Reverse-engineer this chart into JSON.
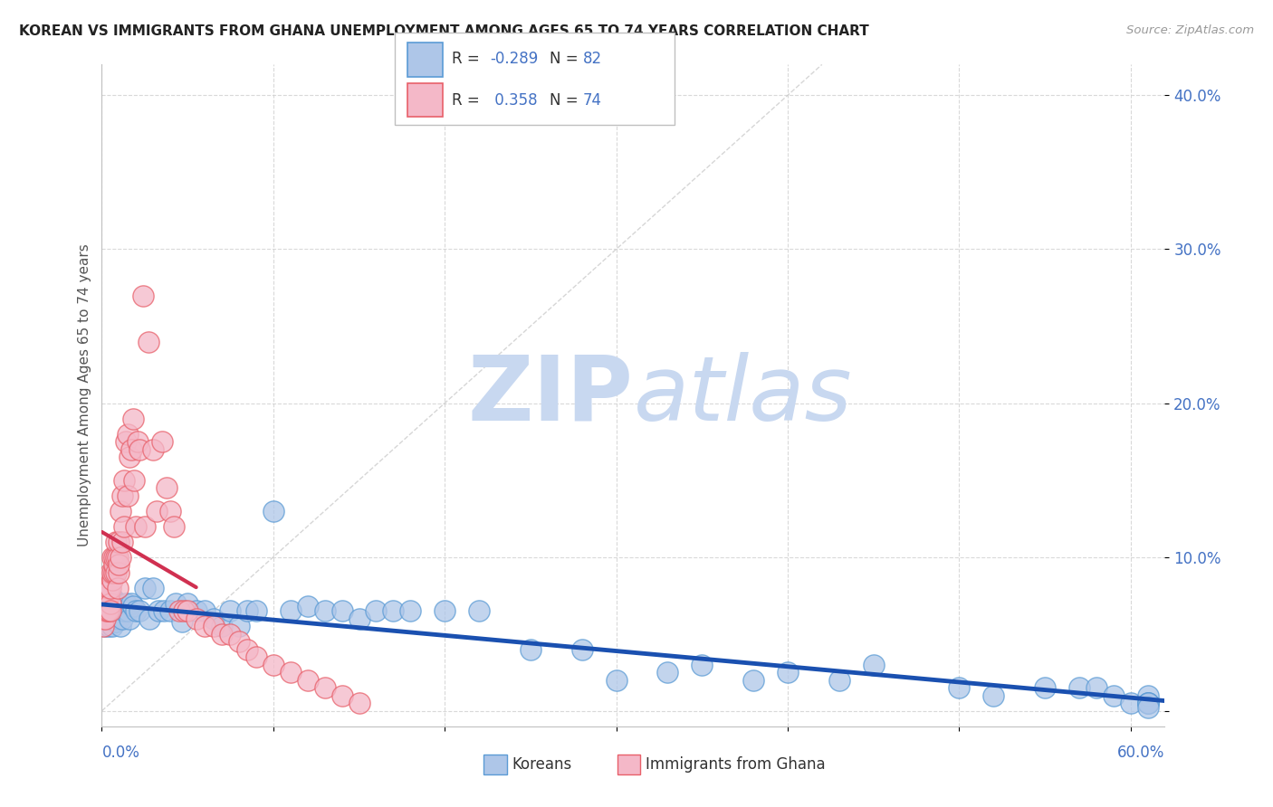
{
  "title": "KOREAN VS IMMIGRANTS FROM GHANA UNEMPLOYMENT AMONG AGES 65 TO 74 YEARS CORRELATION CHART",
  "source": "Source: ZipAtlas.com",
  "ylabel": "Unemployment Among Ages 65 to 74 years",
  "xlim": [
    0.0,
    0.62
  ],
  "ylim": [
    -0.01,
    0.42
  ],
  "ytick_vals": [
    0.0,
    0.1,
    0.2,
    0.3,
    0.4
  ],
  "ytick_labels": [
    "",
    "10.0%",
    "20.0%",
    "30.0%",
    "40.0%"
  ],
  "korean_R": -0.289,
  "korean_N": 82,
  "ghana_R": 0.358,
  "ghana_N": 74,
  "watermark_zip": "ZIP",
  "watermark_atlas": "atlas",
  "watermark_color": "#c8d8f0",
  "blue_scatter_face": "#aec6e8",
  "blue_scatter_edge": "#5b9bd5",
  "pink_scatter_face": "#f4b8c8",
  "pink_scatter_edge": "#e8606a",
  "trend_blue": "#1a50b0",
  "trend_pink": "#d03050",
  "legend_blue_face": "#aec6e8",
  "legend_blue_edge": "#5b9bd5",
  "legend_pink_face": "#f4b8c8",
  "legend_pink_edge": "#e8606a",
  "num_color": "#4472c4",
  "axis_label_color": "#4472c4",
  "title_color": "#222222",
  "ylabel_color": "#555555",
  "korean_x": [
    0.001,
    0.002,
    0.002,
    0.003,
    0.003,
    0.004,
    0.004,
    0.005,
    0.005,
    0.005,
    0.006,
    0.006,
    0.006,
    0.007,
    0.007,
    0.007,
    0.008,
    0.008,
    0.009,
    0.009,
    0.01,
    0.01,
    0.011,
    0.011,
    0.012,
    0.013,
    0.014,
    0.015,
    0.016,
    0.017,
    0.018,
    0.02,
    0.022,
    0.025,
    0.028,
    0.03,
    0.033,
    0.036,
    0.04,
    0.043,
    0.047,
    0.05,
    0.055,
    0.06,
    0.065,
    0.07,
    0.075,
    0.08,
    0.085,
    0.09,
    0.1,
    0.11,
    0.12,
    0.13,
    0.14,
    0.15,
    0.16,
    0.17,
    0.18,
    0.2,
    0.22,
    0.25,
    0.28,
    0.3,
    0.33,
    0.35,
    0.38,
    0.4,
    0.43,
    0.45,
    0.5,
    0.52,
    0.55,
    0.57,
    0.58,
    0.59,
    0.6,
    0.61,
    0.61,
    0.61,
    0.61,
    0.61
  ],
  "korean_y": [
    0.06,
    0.065,
    0.055,
    0.07,
    0.06,
    0.065,
    0.055,
    0.07,
    0.075,
    0.06,
    0.065,
    0.07,
    0.055,
    0.068,
    0.06,
    0.072,
    0.065,
    0.058,
    0.07,
    0.062,
    0.065,
    0.06,
    0.068,
    0.055,
    0.06,
    0.065,
    0.07,
    0.065,
    0.06,
    0.07,
    0.068,
    0.065,
    0.065,
    0.08,
    0.06,
    0.08,
    0.065,
    0.065,
    0.065,
    0.07,
    0.058,
    0.07,
    0.065,
    0.065,
    0.06,
    0.055,
    0.065,
    0.055,
    0.065,
    0.065,
    0.13,
    0.065,
    0.068,
    0.065,
    0.065,
    0.06,
    0.065,
    0.065,
    0.065,
    0.065,
    0.065,
    0.04,
    0.04,
    0.02,
    0.025,
    0.03,
    0.02,
    0.025,
    0.02,
    0.03,
    0.015,
    0.01,
    0.015,
    0.015,
    0.015,
    0.01,
    0.005,
    0.01,
    0.005,
    0.005,
    0.005,
    0.002
  ],
  "ghana_x": [
    0.001,
    0.001,
    0.001,
    0.002,
    0.002,
    0.002,
    0.002,
    0.003,
    0.003,
    0.003,
    0.003,
    0.004,
    0.004,
    0.004,
    0.005,
    0.005,
    0.005,
    0.005,
    0.006,
    0.006,
    0.006,
    0.007,
    0.007,
    0.007,
    0.008,
    0.008,
    0.008,
    0.009,
    0.009,
    0.01,
    0.01,
    0.01,
    0.011,
    0.011,
    0.012,
    0.012,
    0.013,
    0.013,
    0.014,
    0.015,
    0.015,
    0.016,
    0.017,
    0.018,
    0.019,
    0.02,
    0.021,
    0.022,
    0.024,
    0.025,
    0.027,
    0.03,
    0.032,
    0.035,
    0.038,
    0.04,
    0.042,
    0.045,
    0.048,
    0.05,
    0.055,
    0.06,
    0.065,
    0.07,
    0.075,
    0.08,
    0.085,
    0.09,
    0.1,
    0.11,
    0.12,
    0.13,
    0.14,
    0.15
  ],
  "ghana_y": [
    0.06,
    0.07,
    0.055,
    0.065,
    0.07,
    0.075,
    0.06,
    0.07,
    0.065,
    0.075,
    0.08,
    0.065,
    0.075,
    0.08,
    0.07,
    0.08,
    0.09,
    0.065,
    0.085,
    0.09,
    0.1,
    0.09,
    0.095,
    0.1,
    0.1,
    0.11,
    0.09,
    0.1,
    0.08,
    0.11,
    0.09,
    0.095,
    0.13,
    0.1,
    0.14,
    0.11,
    0.15,
    0.12,
    0.175,
    0.18,
    0.14,
    0.165,
    0.17,
    0.19,
    0.15,
    0.12,
    0.175,
    0.17,
    0.27,
    0.12,
    0.24,
    0.17,
    0.13,
    0.175,
    0.145,
    0.13,
    0.12,
    0.065,
    0.065,
    0.065,
    0.06,
    0.055,
    0.055,
    0.05,
    0.05,
    0.045,
    0.04,
    0.035,
    0.03,
    0.025,
    0.02,
    0.015,
    0.01,
    0.005
  ]
}
